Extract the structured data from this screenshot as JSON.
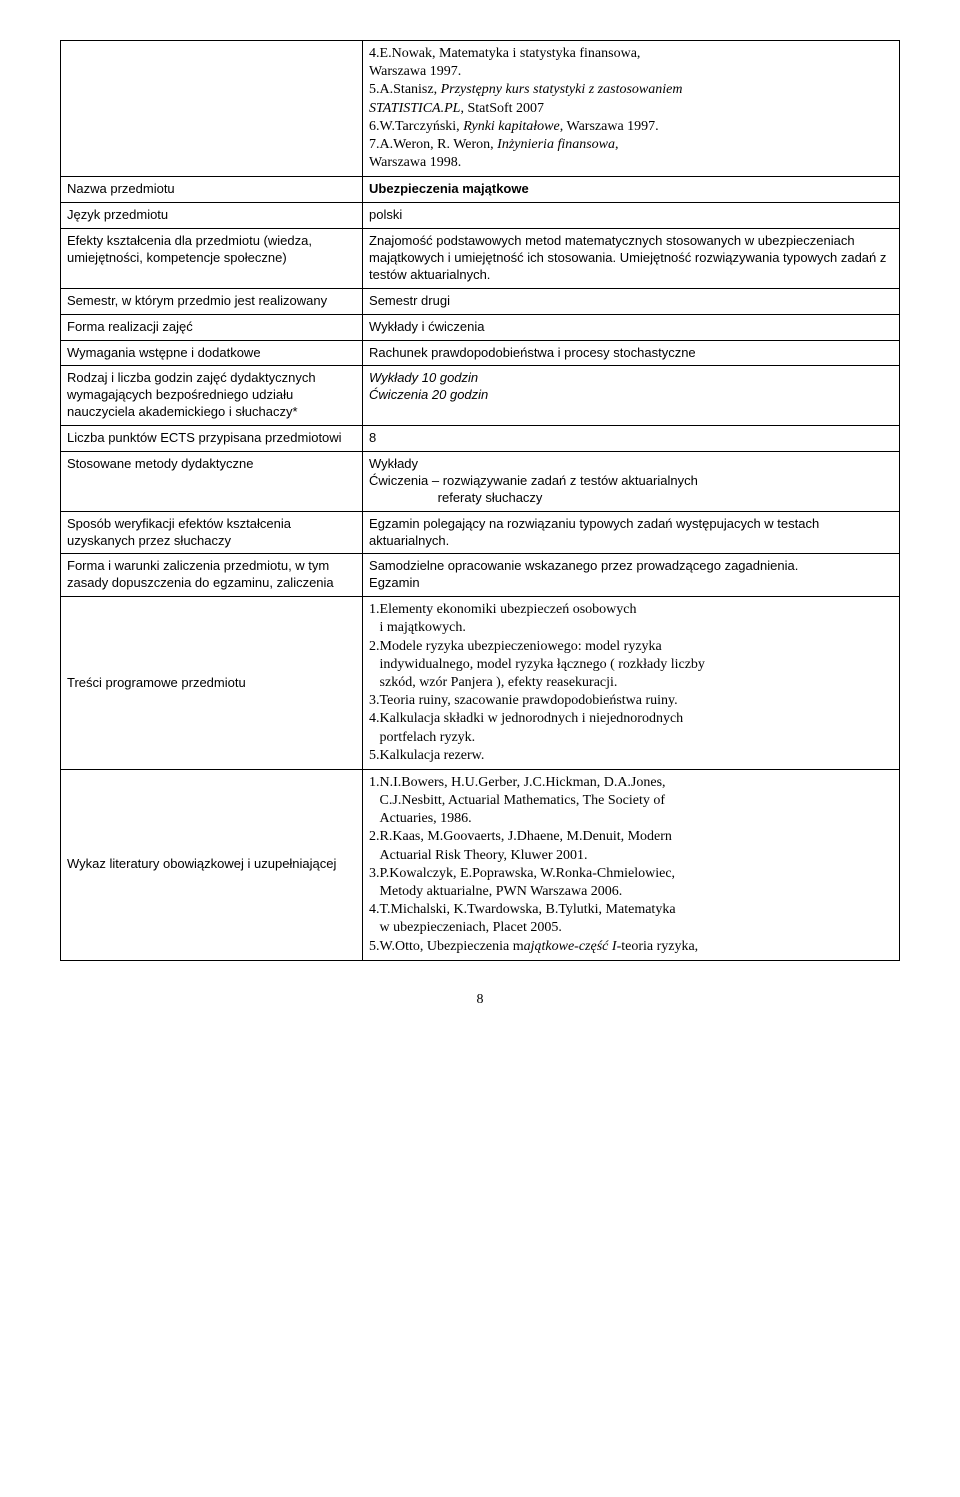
{
  "topBib": {
    "items": [
      "4.E.Nowak, Matematyka i statystyka finansowa,",
      "   Warszawa 1997.",
      "5.A.Stanisz, <i>Przystępny kurs statystyki z zastosowaniem</i>",
      "   <i>STATISTICA.PL</i>, StatSoft 2007",
      "6.W.Tarczyński, <i>Rynki kapitałowe</i>, Warszawa 1997.",
      "7.A.Weron, R. Weron, <i>Inżynieria finansowa</i>,",
      "   Warszawa 1998."
    ]
  },
  "rows": [
    {
      "label": "Nazwa przedmiotu",
      "value": "<b>Ubezpieczenia majątkowe</b>",
      "valueClass": "sans"
    },
    {
      "label": "Język przedmiotu",
      "value": "polski",
      "valueClass": "sans"
    },
    {
      "label": "Efekty kształcenia dla przedmiotu (wiedza, umiejętności, kompetencje społeczne)",
      "value": "Znajomość podstawowych metod matematycznych stosowanych w ubezpieczeniach majątkowych i umiejętność ich stosowania. Umiejętność rozwiązywania typowych zadań z testów aktuarialnych.",
      "valueClass": "sans"
    },
    {
      "label": "Semestr, w którym przedmio jest realizowany",
      "value": "Semestr drugi",
      "valueClass": "sans"
    },
    {
      "label": "Forma realizacji zajęć",
      "value": "Wykłady i ćwiczenia",
      "valueClass": "sans"
    },
    {
      "label": "Wymagania wstępne i dodatkowe",
      "value": "Rachunek prawdopodobieństwa i procesy stochastyczne",
      "valueClass": "sans"
    },
    {
      "label": "Rodzaj i liczba godzin zajęć dydaktycznych wymagających bezpośredniego udziału nauczyciela akademickiego i słuchaczy*",
      "value": "<i>Wykłady 10 godzin<br>Ćwiczenia 20 godzin</i>",
      "valueClass": "sans"
    },
    {
      "label": "Liczba punktów ECTS przypisana przedmiotowi",
      "value": "8",
      "valueClass": "sans"
    },
    {
      "label": "Stosowane metody dydaktyczne",
      "value": "Wykłady<br>Ćwiczenia – rozwiązywanie zadań z testów aktuarialnych<br>&nbsp;&nbsp;&nbsp;&nbsp;&nbsp;&nbsp;&nbsp;&nbsp;&nbsp;&nbsp;&nbsp;&nbsp;&nbsp;&nbsp;&nbsp;&nbsp;&nbsp;&nbsp;&nbsp;referaty słuchaczy",
      "valueClass": "sans"
    },
    {
      "label": "Sposób weryfikacji efektów kształcenia uzyskanych przez słuchaczy",
      "value": "Egzamin polegający na rozwiązaniu typowych zadań występujacych w testach aktuarialnych.",
      "valueClass": "sans"
    },
    {
      "label": "Forma i warunki zaliczenia przedmiotu, w tym zasady dopuszczenia do egzaminu, zaliczenia",
      "value": "Samodzielne opracowanie wskazanego przez prowadzącego zagadnienia.<br>Egzamin",
      "valueClass": "sans"
    }
  ],
  "programContent": {
    "label": "Treści programowe przedmiotu",
    "items": [
      "1.Elementy ekonomiki ubezpieczeń osobowych<br>&nbsp;&nbsp;&nbsp;i majątkowych.",
      "2.Modele ryzyka ubezpieczeniowego: model ryzyka<br>&nbsp;&nbsp;&nbsp;indywidualnego, model ryzyka łącznego ( rozkłady liczby<br>&nbsp;&nbsp;&nbsp;szkód, wzór Panjera ), efekty reasekuracji.",
      "3.Teoria ruiny, szacowanie prawdopodobieństwa ruiny.",
      "4.Kalkulacja składki w jednorodnych i niejednorodnych<br>&nbsp;&nbsp;&nbsp;portfelach ryzyk.",
      "5.Kalkulacja rezerw."
    ]
  },
  "bibliography": {
    "label": "Wykaz literatury obowiązkowej i uzupełniającej",
    "items": [
      "1.N.I.Bowers, H.U.Gerber, J.C.Hickman, D.A.Jones,<br>&nbsp;&nbsp;&nbsp;C.J.Nesbitt, Actuarial Mathematics, The Society of<br>&nbsp;&nbsp;&nbsp;Actuaries, 1986.",
      "2.R.Kaas, M.Goovaerts, J.Dhaene, M.Denuit, Modern<br>&nbsp;&nbsp;&nbsp;Actuarial Risk Theory, Kluwer 2001.",
      "3.P.Kowalczyk, E.Poprawska, W.Ronka-Chmielowiec,<br>&nbsp;&nbsp;&nbsp;Metody aktuarialne, PWN Warszawa 2006.",
      "4.T.Michalski, K.Twardowska, B.Tylutki, Matematyka<br>&nbsp;&nbsp;&nbsp;w ubezpieczeniach, Placet 2005.",
      "5.W.Otto, Ubezpieczenia m<i>ajątkowe-część I</i>-teoria ryzyka,"
    ]
  },
  "pageNumber": "8"
}
